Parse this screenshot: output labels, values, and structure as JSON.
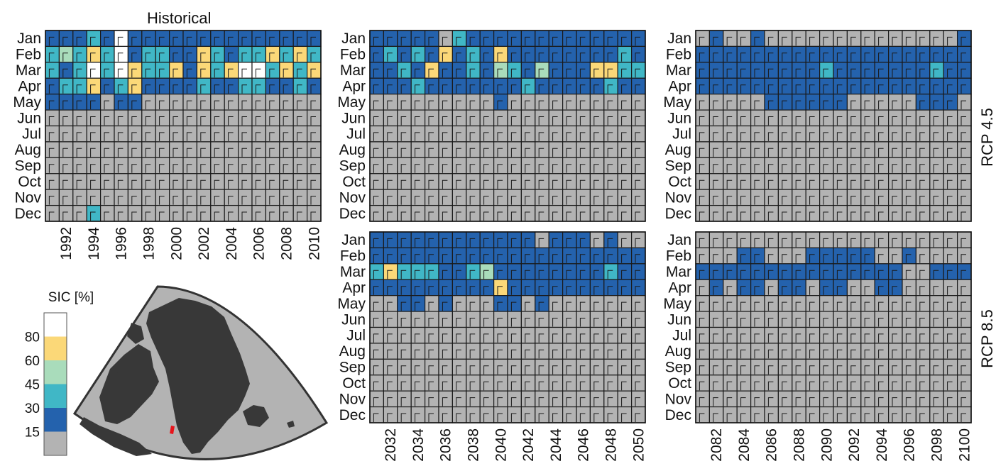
{
  "months": [
    "Jan",
    "Feb",
    "Mar",
    "Apr",
    "May",
    "Jun",
    "Jul",
    "Aug",
    "Sep",
    "Oct",
    "Nov",
    "Dec"
  ],
  "colorbar": {
    "title": "SIC [%]",
    "ticks": [
      "15",
      "30",
      "45",
      "60",
      "80"
    ],
    "bins": [
      {
        "range": "<15",
        "color": "#b3b3b3"
      },
      {
        "range": "15-30",
        "color": "#2462ad"
      },
      {
        "range": "30-45",
        "color": "#40b7c6"
      },
      {
        "range": "45-60",
        "color": "#a9dcbb"
      },
      {
        "range": "60-80",
        "color": "#fbd878"
      },
      {
        "range": ">80",
        "color": "#ffffff"
      }
    ]
  },
  "map": {
    "ocean_color": "#b3b3b3",
    "land_color": "#383838",
    "marker_color": "#e8141b"
  },
  "chart_data": [
    {
      "type": "heatmap",
      "title": "Historical",
      "rcp_label": "",
      "years": [
        "1991",
        "1992",
        "1993",
        "1994",
        "1995",
        "1996",
        "1997",
        "1998",
        "1999",
        "2000",
        "2001",
        "2002",
        "2003",
        "2004",
        "2005",
        "2006",
        "2007",
        "2008",
        "2009",
        "2010"
      ],
      "year_ticks": [
        "1992",
        "1994",
        "1996",
        "1998",
        "2000",
        "2002",
        "2004",
        "2006",
        "2008",
        "2010"
      ],
      "sic_class_rows_jan_to_dec": [
        "11121511111111111111",
        "23242512211421224242",
        "21252542241424552424",
        "12241241111211221121",
        "11110110000000000000",
        "00000000000000000000",
        "00000000000000000000",
        "00000000000000000000",
        "00000000000000000000",
        "00000000000000000000",
        "00000000000000000000",
        "00020000000000000000"
      ]
    },
    {
      "type": "heatmap",
      "title": "",
      "rcp_label": "RCP 4.5",
      "years": [
        "2031",
        "2032",
        "2033",
        "2034",
        "2035",
        "2036",
        "2037",
        "2038",
        "2039",
        "2040",
        "2041",
        "2042",
        "2043",
        "2044",
        "2045",
        "2046",
        "2047",
        "2048",
        "2049",
        "2050"
      ],
      "year_ticks": [
        "2032",
        "2034",
        "2036",
        "2038",
        "2040",
        "2042",
        "2044",
        "2046",
        "2048",
        "2050"
      ],
      "sic_class_rows_jan_to_dec": [
        "11111021111111111111",
        "12121412141111111121",
        "11214112132131114422",
        "11121111111211111211",
        "00000000010000000000",
        "00000000000000000000",
        "00000000000000000000",
        "00000000000000000000",
        "00000000000000000000",
        "00000000000000000000",
        "00000000000000000000",
        "00000000000000000000"
      ]
    },
    {
      "type": "heatmap",
      "title": "",
      "rcp_label": "",
      "years": [
        "2081",
        "2082",
        "2083",
        "2084",
        "2085",
        "2086",
        "2087",
        "2088",
        "2089",
        "2090",
        "2091",
        "2092",
        "2093",
        "2094",
        "2095",
        "2096",
        "2097",
        "2098",
        "2099",
        "2100"
      ],
      "year_ticks": [
        "2082",
        "2084",
        "2086",
        "2088",
        "2090",
        "2092",
        "2094",
        "2096",
        "2098",
        "2100"
      ],
      "sic_class_rows_jan_to_dec": [
        "01001000000000000001",
        "11111111111111111111",
        "11111111121111111211",
        "11111111111111111111",
        "00000111111000001110",
        "00000000000000000000",
        "00000000000000000000",
        "00000000000000000000",
        "00000000000000000000",
        "00000000000000000000",
        "00000000000000000000",
        "00000000000000000000"
      ]
    },
    {
      "type": "heatmap",
      "title": "",
      "rcp_label": "RCP 8.5",
      "years": [
        "2031",
        "2032",
        "2033",
        "2034",
        "2035",
        "2036",
        "2037",
        "2038",
        "2039",
        "2040",
        "2041",
        "2042",
        "2043",
        "2044",
        "2045",
        "2046",
        "2047",
        "2048",
        "2049",
        "2050"
      ],
      "year_ticks": [
        "2032",
        "2034",
        "2036",
        "2038",
        "2040",
        "2042",
        "2044",
        "2046",
        "2048",
        "2050"
      ],
      "sic_class_rows_jan_to_dec": [
        "11111111111101110100",
        "11111111111111111111",
        "24222112311111111211",
        "11111111141111111111",
        "00110100011010000000",
        "00000000000000000000",
        "00000000000000000000",
        "00000000000000000000",
        "00000000000000000000",
        "00000000000000000000",
        "00000000000000000000",
        "00000000000000000000"
      ]
    },
    {
      "type": "heatmap",
      "title": "",
      "rcp_label": "",
      "years": [
        "2081",
        "2082",
        "2083",
        "2084",
        "2085",
        "2086",
        "2087",
        "2088",
        "2089",
        "2090",
        "2091",
        "2092",
        "2093",
        "2094",
        "2095",
        "2096",
        "2097",
        "2098",
        "2099",
        "2100"
      ],
      "year_ticks": [
        "2082",
        "2084",
        "2086",
        "2088",
        "2090",
        "2092",
        "2094",
        "2096",
        "2098",
        "2100"
      ],
      "sic_class_rows_jan_to_dec": [
        "00000000000000000000",
        "00011000111110010000",
        "11111111111111100111",
        "01011011011001100000",
        "00000000000000000000",
        "00000000000000000000",
        "00000000000000000000",
        "00000000000000000000",
        "00000000000000000000",
        "00000000000000000000",
        "00000000000000000000",
        "00000000000000000000"
      ]
    }
  ]
}
